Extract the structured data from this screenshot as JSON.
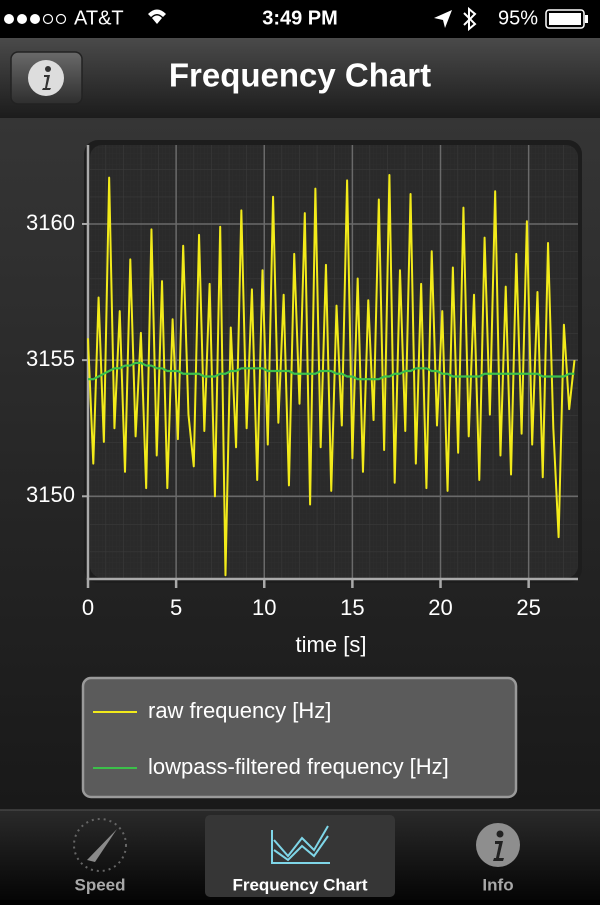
{
  "status_bar": {
    "carrier": "AT&T",
    "time": "3:49 PM",
    "battery": "95%"
  },
  "nav_bar": {
    "title": "Frequency Chart"
  },
  "chart_data": {
    "type": "line",
    "xlabel": "time [s]",
    "x": [
      0,
      0.3,
      0.6,
      0.9,
      1.2,
      1.5,
      1.8,
      2.1,
      2.4,
      2.7,
      3,
      3.3,
      3.6,
      3.9,
      4.2,
      4.5,
      4.8,
      5.1,
      5.4,
      5.7,
      6,
      6.3,
      6.6,
      6.9,
      7.2,
      7.5,
      7.8,
      8.1,
      8.4,
      8.7,
      9,
      9.3,
      9.6,
      9.9,
      10.2,
      10.5,
      10.8,
      11.1,
      11.4,
      11.7,
      12,
      12.3,
      12.6,
      12.9,
      13.2,
      13.5,
      13.8,
      14.1,
      14.4,
      14.7,
      15,
      15.3,
      15.6,
      15.9,
      16.2,
      16.5,
      16.8,
      17.1,
      17.4,
      17.7,
      18,
      18.3,
      18.6,
      18.9,
      19.2,
      19.5,
      19.8,
      20.1,
      20.4,
      20.7,
      21,
      21.3,
      21.6,
      21.9,
      22.2,
      22.5,
      22.8,
      23.1,
      23.4,
      23.7,
      24,
      24.3,
      24.6,
      24.9,
      25.2,
      25.5,
      25.8,
      26.1,
      26.4,
      26.7,
      27,
      27.3,
      27.6
    ],
    "series": [
      {
        "name": "raw frequency [Hz]",
        "color": "#f2ea1a",
        "values": [
          3155.8,
          3151.2,
          3157.3,
          3152.0,
          3161.7,
          3152.5,
          3156.8,
          3150.9,
          3158.7,
          3152.2,
          3156.0,
          3150.3,
          3159.8,
          3151.5,
          3157.9,
          3150.3,
          3156.5,
          3152.1,
          3159.2,
          3153.0,
          3151.1,
          3159.6,
          3152.4,
          3157.8,
          3150.0,
          3159.9,
          3147.1,
          3156.2,
          3151.8,
          3160.5,
          3152.5,
          3157.6,
          3150.6,
          3158.3,
          3151.9,
          3161.0,
          3152.7,
          3157.4,
          3150.4,
          3158.9,
          3153.4,
          3160.4,
          3149.7,
          3161.3,
          3151.8,
          3158.5,
          3150.2,
          3157.0,
          3152.6,
          3161.6,
          3151.4,
          3158.0,
          3150.9,
          3157.2,
          3152.8,
          3160.9,
          3151.7,
          3161.8,
          3150.5,
          3158.3,
          3152.4,
          3161.1,
          3151.2,
          3157.8,
          3150.3,
          3159.0,
          3152.6,
          3156.8,
          3150.2,
          3158.4,
          3151.6,
          3160.6,
          3152.2,
          3157.4,
          3150.6,
          3159.5,
          3153.0,
          3161.2,
          3151.5,
          3157.7,
          3150.8,
          3158.9,
          3152.3,
          3160.1,
          3151.9,
          3157.5,
          3150.7,
          3159.3,
          3152.5,
          3148.5,
          3156.3,
          3153.2,
          3155.0
        ]
      },
      {
        "name": "lowpass-filtered frequency [Hz]",
        "color": "#3cc04a",
        "values": [
          3154.3,
          3154.3,
          3154.4,
          3154.5,
          3154.6,
          3154.7,
          3154.7,
          3154.8,
          3154.8,
          3154.9,
          3154.9,
          3154.8,
          3154.8,
          3154.7,
          3154.7,
          3154.6,
          3154.6,
          3154.6,
          3154.5,
          3154.5,
          3154.5,
          3154.5,
          3154.4,
          3154.4,
          3154.4,
          3154.5,
          3154.5,
          3154.6,
          3154.6,
          3154.7,
          3154.7,
          3154.7,
          3154.7,
          3154.7,
          3154.6,
          3154.6,
          3154.6,
          3154.6,
          3154.6,
          3154.5,
          3154.5,
          3154.5,
          3154.5,
          3154.5,
          3154.6,
          3154.6,
          3154.6,
          3154.5,
          3154.5,
          3154.4,
          3154.4,
          3154.3,
          3154.3,
          3154.3,
          3154.3,
          3154.3,
          3154.4,
          3154.4,
          3154.5,
          3154.5,
          3154.6,
          3154.6,
          3154.7,
          3154.7,
          3154.7,
          3154.6,
          3154.6,
          3154.5,
          3154.5,
          3154.4,
          3154.4,
          3154.4,
          3154.4,
          3154.4,
          3154.4,
          3154.5,
          3154.5,
          3154.5,
          3154.5,
          3154.5,
          3154.5,
          3154.5,
          3154.5,
          3154.5,
          3154.5,
          3154.5,
          3154.4,
          3154.4,
          3154.4,
          3154.4,
          3154.4,
          3154.5,
          3154.5
        ]
      }
    ],
    "xlim": [
      0,
      27.8
    ],
    "xticks": [
      0,
      5,
      10,
      15,
      20,
      25
    ],
    "ylim": [
      3147,
      3162.9
    ],
    "yticks": [
      3150,
      3155,
      3160
    ],
    "grid": true
  },
  "tab_bar": {
    "tabs": [
      "Speed",
      "Frequency Chart",
      "Info"
    ],
    "selected": 1
  }
}
